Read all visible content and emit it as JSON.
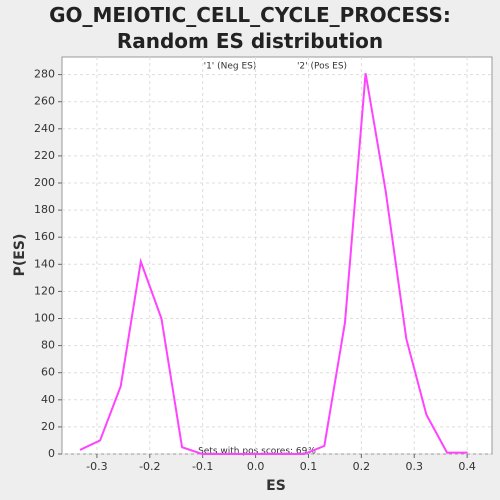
{
  "chart_data": {
    "type": "line",
    "title": "GO_MEIOTIC_CELL_CYCLE_PROCESS: Random ES distribution",
    "x_label": "ES",
    "y_label": "P(ES)",
    "legend": [
      "'1' (Neg ES)",
      "'2' (Pos ES)"
    ],
    "legend_colors": [
      "#0000ff",
      "#ff0000"
    ],
    "annotation": "Sets with pos scores: 69%",
    "x": [
      -0.332,
      -0.294,
      -0.255,
      -0.217,
      -0.178,
      -0.139,
      -0.101,
      -0.062,
      -0.024,
      0.015,
      0.053,
      0.092,
      0.13,
      0.169,
      0.208,
      0.246,
      0.285,
      0.323,
      0.362,
      0.401
    ],
    "series": [
      {
        "color": "#ff44ff",
        "values": [
          3,
          10,
          50,
          142,
          100,
          5,
          0,
          0,
          0,
          0,
          0,
          0,
          6,
          97,
          281,
          194,
          85,
          29,
          1,
          1
        ]
      }
    ],
    "xlim": [
      -0.366,
      0.447
    ],
    "ylim": [
      0,
      293
    ],
    "xticks": [
      -0.3,
      -0.2,
      -0.1,
      {
        "value": 0,
        "label": "0.0"
      },
      0.1,
      0.2,
      0.3,
      0.4
    ],
    "yticks": [
      0,
      20,
      40,
      60,
      80,
      100,
      120,
      140,
      160,
      180,
      200,
      220,
      240,
      260,
      280
    ],
    "grid": true
  }
}
